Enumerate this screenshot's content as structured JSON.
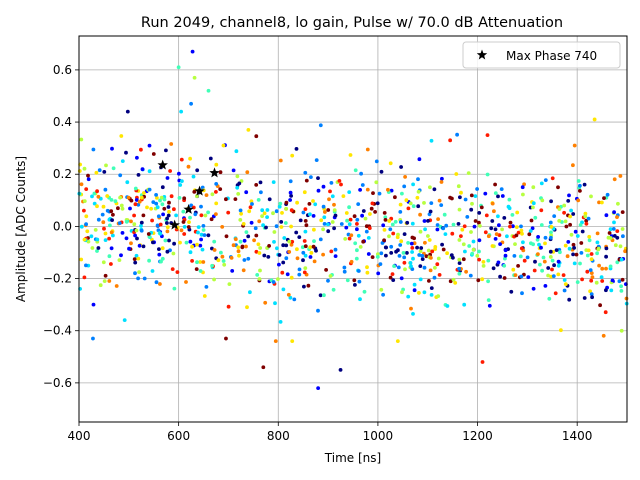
{
  "chart_data": {
    "type": "scatter",
    "title": "Run 2049, channel8, lo gain, Pulse w/ 70.0 dB Attenuation",
    "xlabel": "Time [ns]",
    "ylabel": "Amplitude [ADC Counts]",
    "xlim": [
      400,
      1500
    ],
    "ylim": [
      -0.75,
      0.73
    ],
    "xticks": [
      400,
      600,
      800,
      1000,
      1200,
      1400
    ],
    "xtick_labels": [
      "400",
      "600",
      "800",
      "1000",
      "1200",
      "1400"
    ],
    "yticks": [
      -0.6,
      -0.4,
      -0.2,
      0.0,
      0.2,
      0.4,
      0.6
    ],
    "ytick_labels": [
      "−0.6",
      "−0.4",
      "−0.2",
      "0.0",
      "0.2",
      "0.4",
      "0.6"
    ],
    "grid": true,
    "legend": {
      "placement": "top-right",
      "entries": [
        "Max Phase 740"
      ]
    },
    "colormap": [
      "#00007f",
      "#0000ff",
      "#0080ff",
      "#00e0ff",
      "#40ffb7",
      "#b7ff40",
      "#ffe600",
      "#ff8000",
      "#ff1a00",
      "#7f0000"
    ],
    "noise_band": {
      "x_start": 400,
      "x_end": 1500,
      "y_start_center": 0.04,
      "y_end_center": -0.07,
      "spread": 0.13
    },
    "highlighted_points": {
      "name": "Max Phase 740",
      "marker": "star",
      "color": "#000000",
      "x": [
        568,
        592,
        620,
        642,
        672
      ],
      "y": [
        0.235,
        0.005,
        0.065,
        0.135,
        0.205
      ]
    },
    "notable_points": [
      {
        "x": 498,
        "y": 0.44,
        "color": "#00007f"
      },
      {
        "x": 600,
        "y": 0.61,
        "color": "#40ffb7"
      },
      {
        "x": 605,
        "y": 0.44,
        "color": "#00e0ff"
      },
      {
        "x": 628,
        "y": 0.67,
        "color": "#0000ff"
      },
      {
        "x": 632,
        "y": 0.57,
        "color": "#b7ff40"
      },
      {
        "x": 660,
        "y": 0.52,
        "color": "#40ffb7"
      },
      {
        "x": 625,
        "y": 0.47,
        "color": "#0080ff"
      },
      {
        "x": 690,
        "y": 0.31,
        "color": "#ffe600"
      },
      {
        "x": 740,
        "y": 0.37,
        "color": "#ffe600"
      },
      {
        "x": 1145,
        "y": 0.33,
        "color": "#ff1a00"
      },
      {
        "x": 1220,
        "y": 0.35,
        "color": "#ff1a00"
      },
      {
        "x": 1435,
        "y": 0.41,
        "color": "#ffe600"
      },
      {
        "x": 1395,
        "y": 0.31,
        "color": "#ff8000"
      },
      {
        "x": 1210,
        "y": -0.52,
        "color": "#ff1a00"
      },
      {
        "x": 880,
        "y": -0.62,
        "color": "#0000ff"
      },
      {
        "x": 925,
        "y": -0.55,
        "color": "#00007f"
      },
      {
        "x": 770,
        "y": -0.54,
        "color": "#7f0000"
      },
      {
        "x": 795,
        "y": -0.44,
        "color": "#ff8000"
      },
      {
        "x": 828,
        "y": -0.44,
        "color": "#ffe600"
      },
      {
        "x": 428,
        "y": -0.43,
        "color": "#0080ff"
      },
      {
        "x": 695,
        "y": -0.43,
        "color": "#7f0000"
      },
      {
        "x": 1040,
        "y": -0.44,
        "color": "#ffe600"
      }
    ]
  }
}
